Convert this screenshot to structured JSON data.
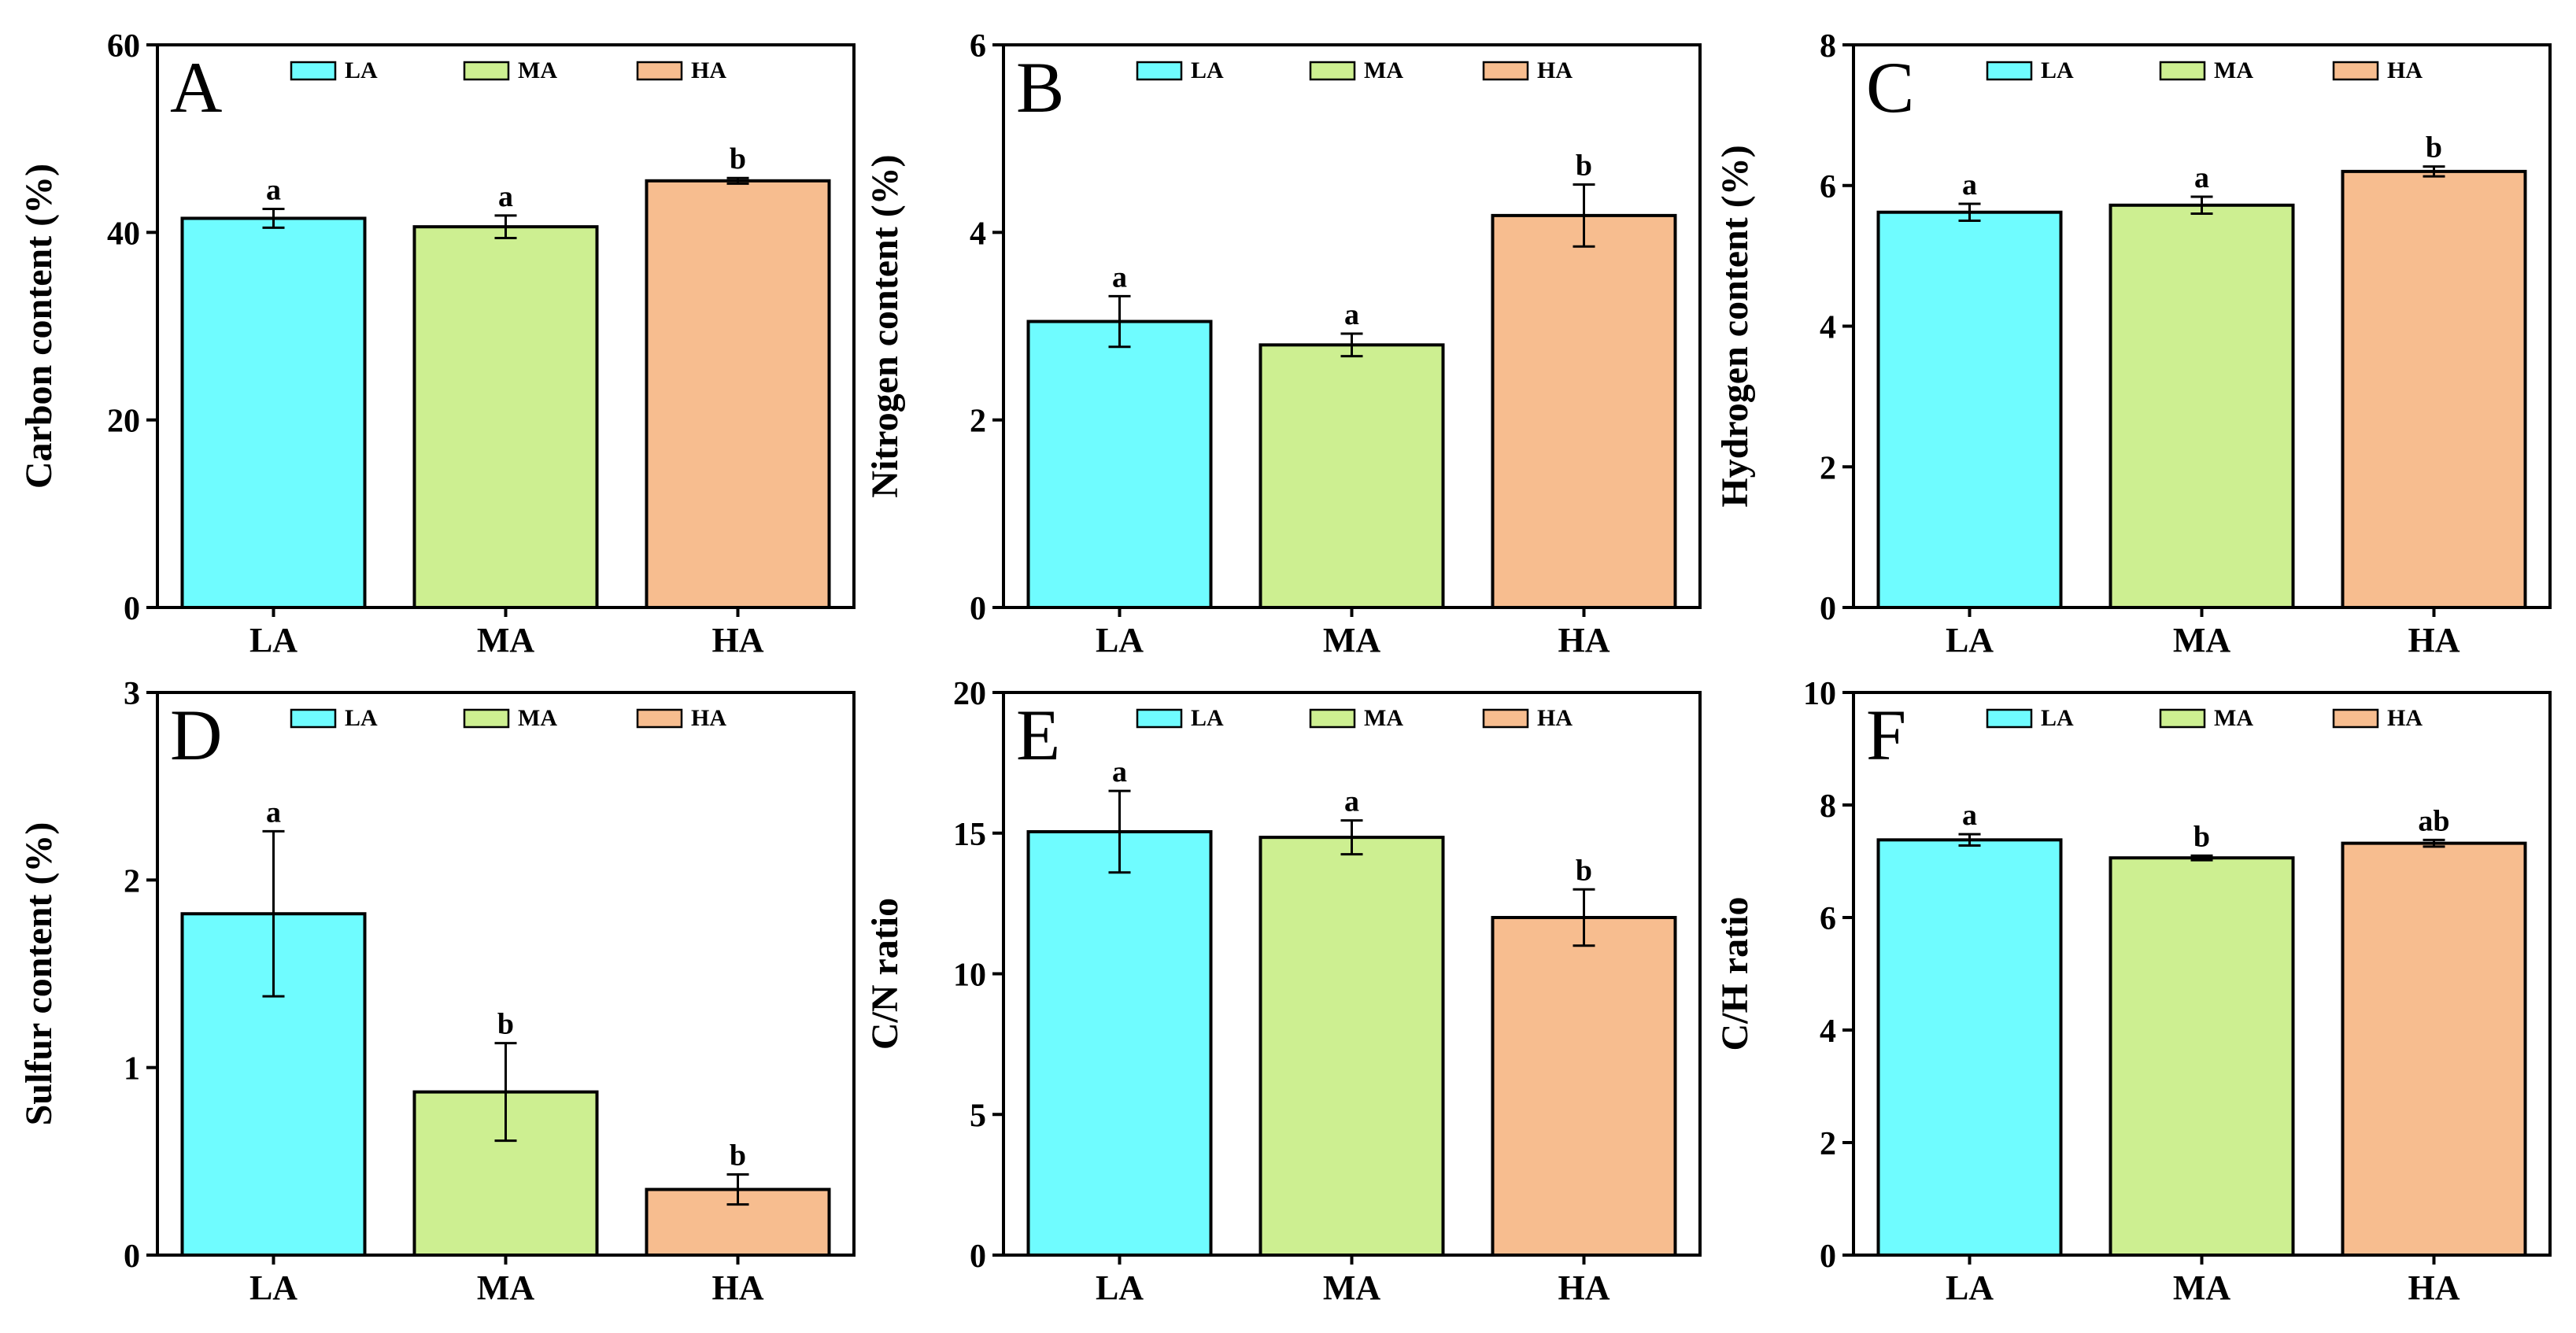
{
  "colors": {
    "LA": "#6ffcff",
    "MA": "#cdef91",
    "HA": "#f7bd8f"
  },
  "chart_data": [
    {
      "type": "bar",
      "panel": "A",
      "categories": [
        "LA",
        "MA",
        "HA"
      ],
      "values": [
        41.5,
        40.6,
        45.5
      ],
      "errors": [
        1.0,
        1.2,
        0.3
      ],
      "letters": [
        "a",
        "a",
        "b"
      ],
      "ylabel": "Carbon content (%)",
      "ylim": [
        0,
        60
      ],
      "yticks": [
        0,
        20,
        40,
        60
      ],
      "legend": [
        "LA",
        "MA",
        "HA"
      ]
    },
    {
      "type": "bar",
      "panel": "B",
      "categories": [
        "LA",
        "MA",
        "HA"
      ],
      "values": [
        3.05,
        2.8,
        4.18
      ],
      "errors": [
        0.27,
        0.12,
        0.33
      ],
      "letters": [
        "a",
        "a",
        "b"
      ],
      "ylabel": "Nitrogen content (%)",
      "ylim": [
        0,
        6
      ],
      "yticks": [
        0,
        2,
        4,
        6
      ],
      "legend": [
        "LA",
        "MA",
        "HA"
      ]
    },
    {
      "type": "bar",
      "panel": "C",
      "categories": [
        "LA",
        "MA",
        "HA"
      ],
      "values": [
        5.62,
        5.72,
        6.2
      ],
      "errors": [
        0.12,
        0.12,
        0.07
      ],
      "letters": [
        "a",
        "a",
        "b"
      ],
      "ylabel": "Hydrogen content (%)",
      "ylim": [
        0,
        8
      ],
      "yticks": [
        0,
        2,
        4,
        6,
        8
      ],
      "legend": [
        "LA",
        "MA",
        "HA"
      ]
    },
    {
      "type": "bar",
      "panel": "D",
      "categories": [
        "LA",
        "MA",
        "HA"
      ],
      "values": [
        1.82,
        0.87,
        0.35
      ],
      "errors": [
        0.44,
        0.26,
        0.08
      ],
      "letters": [
        "a",
        "b",
        "b"
      ],
      "ylabel": "Sulfur content (%)",
      "ylim": [
        0,
        3
      ],
      "yticks": [
        0,
        1,
        2,
        3
      ],
      "legend": [
        "LA",
        "MA",
        "HA"
      ]
    },
    {
      "type": "bar",
      "panel": "E",
      "categories": [
        "LA",
        "MA",
        "HA"
      ],
      "values": [
        15.05,
        14.85,
        12.0
      ],
      "errors": [
        1.45,
        0.6,
        1.0
      ],
      "letters": [
        "a",
        "a",
        "b"
      ],
      "ylabel": "C/N ratio",
      "ylim": [
        0,
        20
      ],
      "yticks": [
        0,
        5,
        10,
        15,
        20
      ],
      "legend": [
        "LA",
        "MA",
        "HA"
      ]
    },
    {
      "type": "bar",
      "panel": "F",
      "categories": [
        "LA",
        "MA",
        "HA"
      ],
      "values": [
        7.38,
        7.06,
        7.32
      ],
      "errors": [
        0.1,
        0.04,
        0.06
      ],
      "letters": [
        "a",
        "b",
        "ab"
      ],
      "ylabel": "C/H ratio",
      "ylim": [
        0,
        10
      ],
      "yticks": [
        0,
        2,
        4,
        6,
        8,
        10
      ],
      "legend": [
        "LA",
        "MA",
        "HA"
      ]
    }
  ]
}
